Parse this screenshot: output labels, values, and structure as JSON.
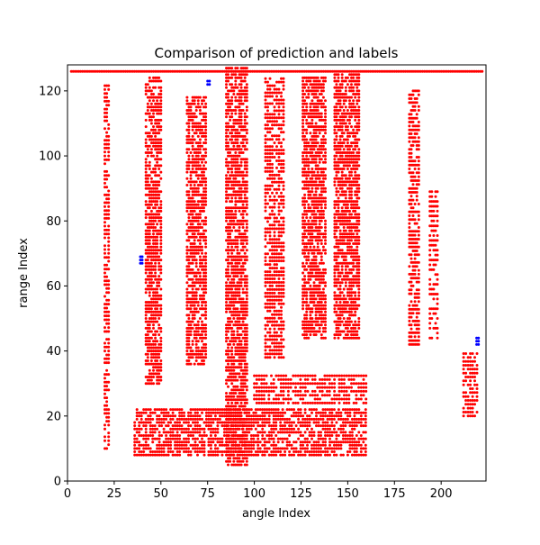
{
  "chart_data": {
    "type": "scatter",
    "title": "Comparison of prediction and labels",
    "xlabel": "angle Index",
    "ylabel": "range Index",
    "xlim": [
      0,
      224
    ],
    "ylim": [
      0,
      128
    ],
    "xticks": [
      0,
      25,
      50,
      75,
      100,
      125,
      150,
      175,
      200
    ],
    "yticks": [
      0,
      20,
      40,
      60,
      80,
      100,
      120
    ],
    "grid": false,
    "legend": "none",
    "series": [
      {
        "color": "#ff0000",
        "marker_size": 1.5,
        "description_regions": [
          {
            "x0": 2,
            "x1": 222,
            "y0": 126,
            "y1": 126,
            "dx": 1,
            "dy": 1
          },
          {
            "x0": 20,
            "x1": 22,
            "y0": 10,
            "y1": 122,
            "dx": 1,
            "dy": 1.2
          },
          {
            "x0": 42,
            "x1": 50,
            "y0": 30,
            "y1": 124,
            "dx": 1,
            "dy": 1
          },
          {
            "x0": 64,
            "x1": 74,
            "y0": 36,
            "y1": 118,
            "dx": 1,
            "dy": 1
          },
          {
            "x0": 85,
            "x1": 96,
            "y0": 5,
            "y1": 127,
            "dx": 1,
            "dy": 1
          },
          {
            "x0": 106,
            "x1": 116,
            "y0": 38,
            "y1": 124,
            "dx": 1.2,
            "dy": 1.1
          },
          {
            "x0": 126,
            "x1": 138,
            "y0": 44,
            "y1": 124,
            "dx": 1,
            "dy": 1
          },
          {
            "x0": 143,
            "x1": 156,
            "y0": 44,
            "y1": 125,
            "dx": 1,
            "dy": 1
          },
          {
            "x0": 36,
            "x1": 160,
            "y0": 8,
            "y1": 22,
            "dx": 1.2,
            "dy": 1
          },
          {
            "x0": 100,
            "x1": 160,
            "y0": 24,
            "y1": 33,
            "dx": 1.3,
            "dy": 1.2
          },
          {
            "x0": 183,
            "x1": 188,
            "y0": 42,
            "y1": 120,
            "dx": 1,
            "dy": 1.2
          },
          {
            "x0": 194,
            "x1": 198,
            "y0": 44,
            "y1": 90,
            "dx": 1,
            "dy": 1.5
          },
          {
            "x0": 212,
            "x1": 220,
            "y0": 20,
            "y1": 40,
            "dx": 1.2,
            "dy": 1.2
          }
        ]
      },
      {
        "color": "#0000ff",
        "marker_size": 1.5,
        "points": [
          [
            39,
            67
          ],
          [
            40,
            67
          ],
          [
            39,
            68
          ],
          [
            40,
            68
          ],
          [
            39,
            69
          ],
          [
            40,
            69
          ],
          [
            75,
            122
          ],
          [
            76,
            122
          ],
          [
            75,
            123
          ],
          [
            76,
            123
          ],
          [
            219,
            42
          ],
          [
            220,
            42
          ],
          [
            219,
            43
          ],
          [
            220,
            43
          ],
          [
            219,
            44
          ],
          [
            220,
            44
          ]
        ]
      }
    ]
  }
}
